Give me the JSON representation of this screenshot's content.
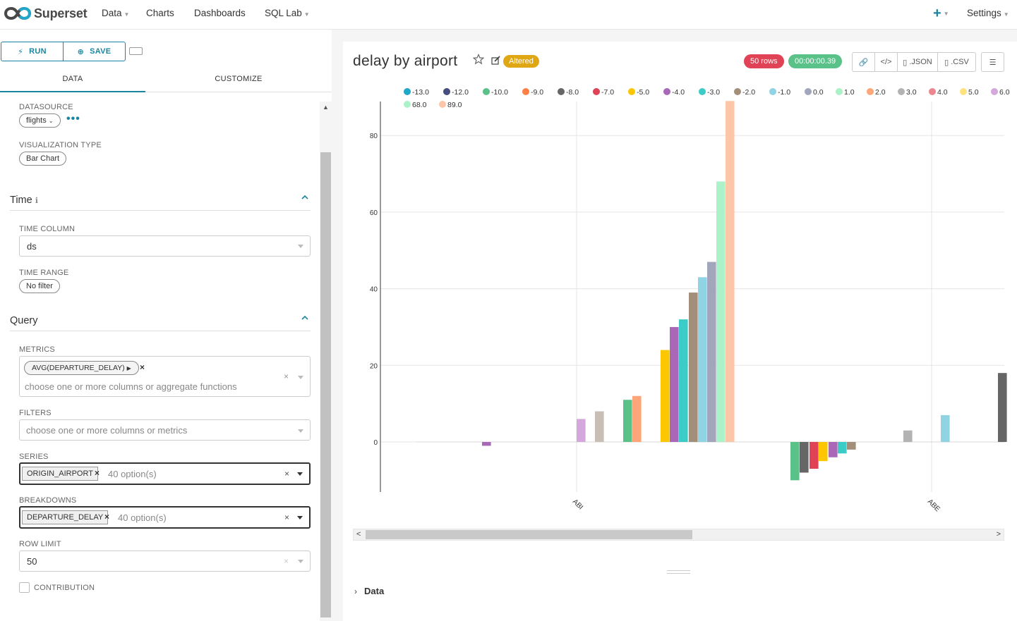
{
  "nav": {
    "brand": "Superset",
    "items": [
      {
        "label": "Data",
        "dropdown": true
      },
      {
        "label": "Charts",
        "dropdown": false
      },
      {
        "label": "Dashboards",
        "dropdown": false
      },
      {
        "label": "SQL Lab",
        "dropdown": true
      }
    ],
    "plus_icon": "plus-icon",
    "settings_label": "Settings"
  },
  "toolbar": {
    "run_label": "RUN",
    "save_label": "SAVE"
  },
  "tabs": {
    "data_label": "DATA",
    "customize_label": "CUSTOMIZE",
    "active": "DATA"
  },
  "controls": {
    "datasource_label": "DATASOURCE",
    "datasource_value": "flights",
    "viz_type_label": "VISUALIZATION TYPE",
    "viz_type_value": "Bar Chart",
    "time_section": "Time",
    "time_column_label": "TIME COLUMN",
    "time_column_value": "ds",
    "time_range_label": "TIME RANGE",
    "time_range_value": "No filter",
    "query_section": "Query",
    "metrics_label": "METRICS",
    "metrics_value": "AVG(DEPARTURE_DELAY)",
    "metrics_placeholder": "choose one or more columns or aggregate functions",
    "filters_label": "FILTERS",
    "filters_placeholder": "choose one or more columns or metrics",
    "series_label": "SERIES",
    "series_value": "ORIGIN_AIRPORT",
    "series_options": "40 option(s)",
    "breakdowns_label": "BREAKDOWNS",
    "breakdowns_value": "DEPARTURE_DELAY",
    "breakdowns_options": "40 option(s)",
    "row_limit_label": "ROW LIMIT",
    "row_limit_value": "50",
    "contribution_label": "CONTRIBUTION",
    "contribution_checked": false
  },
  "chart_header": {
    "title": "delay by airport",
    "altered_label": "Altered",
    "rows_badge": "50 rows",
    "time_badge": "00:00:00.39",
    "json_label": ".JSON",
    "csv_label": ".CSV",
    "colors": {
      "rows": "#e04355",
      "time": "#5ac189",
      "altered": "#e0a715"
    }
  },
  "data_section_label": "Data",
  "chart_data": {
    "type": "bar",
    "title": "",
    "xlabel": "",
    "ylabel": "",
    "ylim": [
      -13,
      89
    ],
    "yticks": [
      0,
      20,
      40,
      60,
      80
    ],
    "grid": true,
    "legend_position": "top",
    "categories": [
      "ABI",
      "ABE"
    ],
    "legend": [
      {
        "name": "-13.0",
        "color": "#1fa8c9"
      },
      {
        "name": "-12.0",
        "color": "#454e7c"
      },
      {
        "name": "-10.0",
        "color": "#5ac189"
      },
      {
        "name": "-9.0",
        "color": "#ff7f44"
      },
      {
        "name": "-8.0",
        "color": "#666666"
      },
      {
        "name": "-7.0",
        "color": "#e04355"
      },
      {
        "name": "-5.0",
        "color": "#fcc700"
      },
      {
        "name": "-4.0",
        "color": "#a868b7"
      },
      {
        "name": "-3.0",
        "color": "#3cccc8"
      },
      {
        "name": "-2.0",
        "color": "#a38f79"
      },
      {
        "name": "-1.0",
        "color": "#8fd3e4"
      },
      {
        "name": "0.0",
        "color": "#a1a6bd"
      },
      {
        "name": "1.0",
        "color": "#acf2c9"
      },
      {
        "name": "2.0",
        "color": "#fea679"
      },
      {
        "name": "3.0",
        "color": "#b3b3b3"
      },
      {
        "name": "4.0",
        "color": "#ee868f"
      },
      {
        "name": "5.0",
        "color": "#fde380"
      },
      {
        "name": "6.0",
        "color": "#d4a8dd"
      },
      {
        "name": "68.0",
        "color": "#acf2c9"
      },
      {
        "name": "89.0",
        "color": "#fdc6a9"
      }
    ],
    "bars": [
      {
        "x": 0,
        "y": -1,
        "series": "-4.0",
        "color": "#a868b7"
      },
      {
        "x": 0,
        "y": 6,
        "series": "6.0",
        "color": "#d4a8dd"
      },
      {
        "x": 0,
        "y": 8,
        "series": "-2.0",
        "color": "#c8beb3"
      },
      {
        "x": 0,
        "y": 11,
        "series": "-10.0",
        "color": "#5ac189"
      },
      {
        "x": 0,
        "y": 12,
        "series": "-9.0",
        "color": "#fea679"
      },
      {
        "x": 0,
        "y": 24,
        "series": "-5.0",
        "color": "#fcc700"
      },
      {
        "x": 0,
        "y": 30,
        "series": "-4.0",
        "color": "#a868b7"
      },
      {
        "x": 0,
        "y": 32,
        "series": "-3.0",
        "color": "#3cccc8"
      },
      {
        "x": 0,
        "y": 39,
        "series": "-2.0",
        "color": "#a38f79"
      },
      {
        "x": 0,
        "y": 43,
        "series": "-1.0",
        "color": "#8fd3e4"
      },
      {
        "x": 0,
        "y": 47,
        "series": "0.0",
        "color": "#a1a6bd"
      },
      {
        "x": 0,
        "y": 68,
        "series": "68.0",
        "color": "#acf2c9"
      },
      {
        "x": 0,
        "y": 89,
        "series": "89.0",
        "color": "#fdc6a9"
      },
      {
        "x": 1,
        "y": -10,
        "series": "-10.0",
        "color": "#5ac189"
      },
      {
        "x": 1,
        "y": -8,
        "series": "-8.0",
        "color": "#666666"
      },
      {
        "x": 1,
        "y": -7,
        "series": "-7.0",
        "color": "#e04355"
      },
      {
        "x": 1,
        "y": -5,
        "series": "-5.0",
        "color": "#fcc700"
      },
      {
        "x": 1,
        "y": -4,
        "series": "-4.0",
        "color": "#a868b7"
      },
      {
        "x": 1,
        "y": -3,
        "series": "-3.0",
        "color": "#3cccc8"
      },
      {
        "x": 1,
        "y": -2,
        "series": "-2.0",
        "color": "#a38f79"
      },
      {
        "x": 1,
        "y": 3,
        "series": "3.0",
        "color": "#b3b3b3"
      },
      {
        "x": 1,
        "y": 7,
        "series": "-1.0",
        "color": "#8fd3e4"
      },
      {
        "x": 1,
        "y": 18,
        "series": "-8.0",
        "color": "#666666"
      }
    ]
  }
}
